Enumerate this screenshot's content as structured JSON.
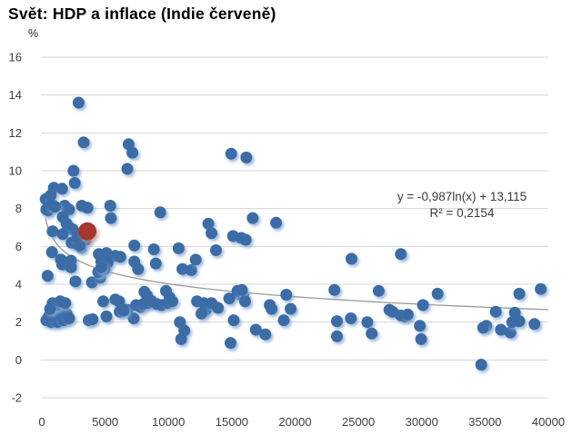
{
  "header": {
    "title": "Svět: HDP a inflace (Indie červeně)"
  },
  "chart_data": {
    "type": "scatter",
    "title": "Svět: HDP a inflace (Indie červeně)",
    "xlabel": "",
    "ylabel": "%",
    "xlim": [
      0,
      40000
    ],
    "ylim": [
      -2,
      16
    ],
    "x_ticks": [
      0,
      5000,
      10000,
      15000,
      20000,
      25000,
      30000,
      35000,
      40000
    ],
    "y_ticks": [
      16,
      14,
      12,
      10,
      8,
      6,
      4,
      2,
      0,
      -2
    ],
    "grid": "horizontal-light-gray",
    "legend": "none",
    "colors": {
      "world_points": "#3B6CA6",
      "india_point": "#A4392F",
      "trendline": "#9A9A9A",
      "gridline": "#D6D6D6",
      "tick_label": "#3D3D3D"
    },
    "series": [
      {
        "name": "Svět",
        "color": "#3B6CA6",
        "marker_radius": 6.5,
        "points": [
          [
            2900,
            13.6
          ],
          [
            3300,
            11.5
          ],
          [
            6850,
            11.4
          ],
          [
            7150,
            10.95
          ],
          [
            6750,
            10.1
          ],
          [
            14950,
            10.9
          ],
          [
            16150,
            10.7
          ],
          [
            2500,
            10.0
          ],
          [
            2600,
            9.35
          ],
          [
            950,
            9.1
          ],
          [
            1600,
            9.05
          ],
          [
            300,
            8.5
          ],
          [
            700,
            8.7
          ],
          [
            350,
            7.95
          ],
          [
            1800,
            8.15
          ],
          [
            2150,
            7.95
          ],
          [
            3150,
            8.15
          ],
          [
            3600,
            8.05
          ],
          [
            5400,
            8.15
          ],
          [
            500,
            7.9
          ],
          [
            800,
            8.2
          ],
          [
            1050,
            8.1
          ],
          [
            1650,
            7.55
          ],
          [
            1950,
            7.2
          ],
          [
            2100,
            7.05
          ],
          [
            2450,
            6.9
          ],
          [
            5450,
            7.5
          ],
          [
            9350,
            7.8
          ],
          [
            13150,
            7.2
          ],
          [
            16650,
            7.5
          ],
          [
            18500,
            7.25
          ],
          [
            850,
            6.8
          ],
          [
            1650,
            6.65
          ],
          [
            2350,
            6.2
          ],
          [
            2700,
            6.15
          ],
          [
            3100,
            5.95
          ],
          [
            3450,
            6.35
          ],
          [
            2800,
            6.45
          ],
          [
            3000,
            6.05
          ],
          [
            13400,
            6.7
          ],
          [
            15100,
            6.55
          ],
          [
            15750,
            6.45
          ],
          [
            16100,
            6.35
          ],
          [
            800,
            5.7
          ],
          [
            1500,
            5.3
          ],
          [
            1850,
            5.15
          ],
          [
            7300,
            6.05
          ],
          [
            8850,
            5.85
          ],
          [
            10800,
            5.9
          ],
          [
            4500,
            5.6
          ],
          [
            5100,
            5.65
          ],
          [
            5800,
            5.5
          ],
          [
            6200,
            5.45
          ],
          [
            4700,
            5.2
          ],
          [
            5200,
            5.15
          ],
          [
            7300,
            5.2
          ],
          [
            7600,
            4.8
          ],
          [
            9000,
            5.1
          ],
          [
            11100,
            4.8
          ],
          [
            11800,
            4.75
          ],
          [
            12150,
            5.3
          ],
          [
            13750,
            5.8
          ],
          [
            24450,
            5.35
          ],
          [
            28350,
            5.6
          ],
          [
            450,
            4.45
          ],
          [
            1600,
            5.05
          ],
          [
            2300,
            5.25
          ],
          [
            2650,
            4.15
          ],
          [
            3950,
            4.1
          ],
          [
            4600,
            4.35
          ],
          [
            4450,
            4.65
          ],
          [
            4950,
            4.8
          ],
          [
            4700,
            4.9
          ],
          [
            2300,
            4.9
          ],
          [
            8100,
            3.6
          ],
          [
            8300,
            3.4
          ],
          [
            9800,
            3.65
          ],
          [
            10100,
            3.3
          ],
          [
            23100,
            3.7
          ],
          [
            26600,
            3.65
          ],
          [
            31250,
            3.5
          ],
          [
            37700,
            3.5
          ],
          [
            39400,
            3.75
          ],
          [
            15500,
            3.5
          ],
          [
            15900,
            3.4
          ],
          [
            15450,
            3.65
          ],
          [
            15800,
            3.7
          ],
          [
            14800,
            3.25
          ],
          [
            16050,
            3.1
          ],
          [
            19300,
            3.45
          ],
          [
            4850,
            3.1
          ],
          [
            5800,
            3.2
          ],
          [
            6100,
            3.1
          ],
          [
            6150,
            2.55
          ],
          [
            6750,
            2.65
          ],
          [
            7250,
            2.2
          ],
          [
            7450,
            2.9
          ],
          [
            7800,
            2.8
          ],
          [
            8000,
            2.95
          ],
          [
            8400,
            3.0
          ],
          [
            8700,
            3.1
          ],
          [
            9100,
            2.95
          ],
          [
            9450,
            2.9
          ],
          [
            9950,
            3.0
          ],
          [
            10300,
            3.1
          ],
          [
            12250,
            3.1
          ],
          [
            12800,
            3.0
          ],
          [
            12950,
            2.65
          ],
          [
            13400,
            3.0
          ],
          [
            13900,
            2.75
          ],
          [
            18000,
            2.9
          ],
          [
            19650,
            2.7
          ],
          [
            18150,
            2.7
          ],
          [
            19100,
            2.1
          ],
          [
            15150,
            2.1
          ],
          [
            23300,
            2.05
          ],
          [
            24400,
            2.2
          ],
          [
            25700,
            2.0
          ],
          [
            27450,
            2.65
          ],
          [
            27700,
            2.55
          ],
          [
            28350,
            2.35
          ],
          [
            28700,
            2.3
          ],
          [
            28900,
            2.4
          ],
          [
            30100,
            2.9
          ],
          [
            35850,
            2.55
          ],
          [
            37350,
            2.5
          ],
          [
            6350,
            2.7
          ],
          [
            6450,
            2.6
          ],
          [
            5100,
            2.3
          ],
          [
            3700,
            2.1
          ],
          [
            4000,
            2.15
          ],
          [
            350,
            2.1
          ],
          [
            550,
            2.3
          ],
          [
            750,
            2.0
          ],
          [
            950,
            2.5
          ],
          [
            1050,
            2.2
          ],
          [
            1250,
            2.0
          ],
          [
            1350,
            2.6
          ],
          [
            1550,
            2.3
          ],
          [
            1750,
            2.1
          ],
          [
            1950,
            2.45
          ],
          [
            2150,
            2.2
          ],
          [
            850,
            3.0
          ],
          [
            1150,
            2.9
          ],
          [
            1450,
            3.1
          ],
          [
            1850,
            3.0
          ],
          [
            650,
            2.7
          ],
          [
            10900,
            2.0
          ],
          [
            11250,
            1.55
          ],
          [
            11000,
            1.1
          ],
          [
            14900,
            0.9
          ],
          [
            16900,
            1.6
          ],
          [
            17650,
            1.35
          ],
          [
            23300,
            1.25
          ],
          [
            26050,
            1.4
          ],
          [
            29850,
            1.8
          ],
          [
            29950,
            1.1
          ],
          [
            35100,
            1.8
          ],
          [
            34850,
            1.7
          ],
          [
            36250,
            1.6
          ],
          [
            37000,
            1.45
          ],
          [
            37150,
            2.0
          ],
          [
            38900,
            1.9
          ],
          [
            34700,
            -0.25
          ],
          [
            37700,
            2.05
          ],
          [
            12600,
            2.45
          ]
        ]
      },
      {
        "name": "Indie",
        "color": "#A4392F",
        "marker_radius": 10,
        "points": [
          [
            3600,
            6.8
          ]
        ]
      }
    ],
    "trendline": {
      "type": "logarithmic",
      "a": -0.987,
      "b": 13.115,
      "r2": 0.2154,
      "equation_label": "y = -0,987ln(x) + 13,115",
      "r2_label": "R² = 0,2154",
      "color": "#9A9A9A",
      "x_start": 300,
      "x_end": 40000
    }
  }
}
